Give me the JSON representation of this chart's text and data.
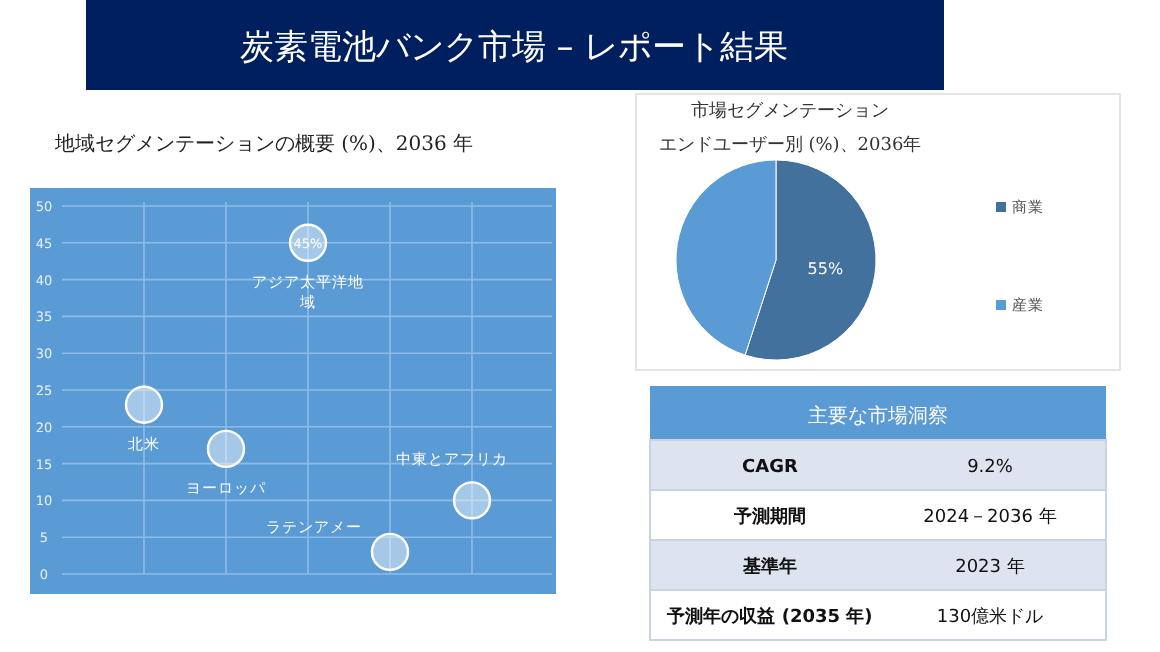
{
  "chart_data": [
    {
      "type": "other",
      "title": "炭素電池バンク市場 – レポート結果"
    },
    {
      "type": "scatter",
      "title": "地域セグメンテーションの概要 (%)、2036 年",
      "categories": [
        null,
        null,
        null,
        null,
        null
      ],
      "ylim": [
        0,
        50
      ],
      "yticks": [
        0,
        5,
        10,
        15,
        20,
        25,
        30,
        35,
        40,
        45,
        50
      ],
      "grid": true,
      "marker": "circle",
      "legend": false,
      "series": [
        {
          "name": "北米",
          "color": "#ffffff",
          "values": [
            23,
            null,
            null,
            null,
            null
          ]
        },
        {
          "name": "ヨーロッパ",
          "color": "#ffffff",
          "values": [
            null,
            17,
            null,
            null,
            null
          ]
        },
        {
          "name": "アジア太平洋地域",
          "color": "#ffffff",
          "values": [
            null,
            null,
            45,
            null,
            null
          ],
          "value_labels": [
            null,
            null,
            "45%",
            null,
            null
          ]
        },
        {
          "name": "ラテンアメー",
          "color": "#ffffff",
          "values": [
            null,
            null,
            null,
            3,
            null
          ]
        },
        {
          "name": "中東とアフリカ",
          "color": "#ffffff",
          "values": [
            null,
            null,
            null,
            null,
            10
          ]
        }
      ]
    },
    {
      "type": "pie",
      "title": "市場セグメンテーションエンドユーザー別 (%)、2036年",
      "categories": [
        "商業",
        "産業"
      ],
      "values": [
        55,
        45
      ],
      "colors": [
        "#41719c",
        "#5b9bd5"
      ],
      "value_labels": [
        "55%",
        null
      ],
      "legend": "right"
    },
    {
      "type": "other",
      "title": "主要な市場洞察",
      "annotations": [
        "CAGR",
        "9.2%",
        "予測期間",
        "2024－2036 年",
        "基準年",
        "2023 年",
        "予測年の収益 (2035 年)",
        "130億米ドル"
      ]
    }
  ]
}
